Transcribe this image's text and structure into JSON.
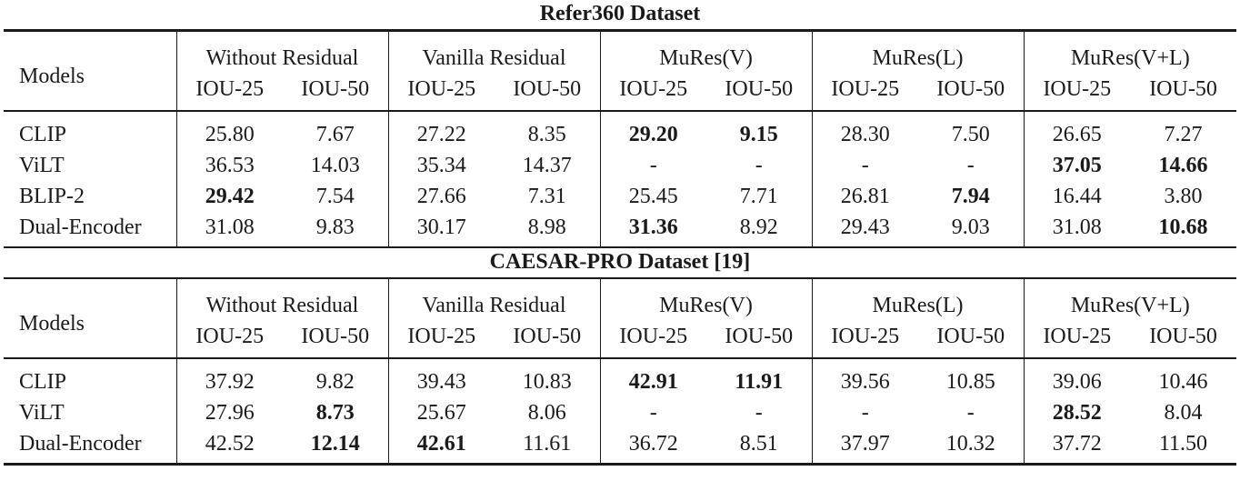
{
  "tables": [
    {
      "caption": "Refer360 Dataset",
      "models_header": "Models",
      "groups": [
        "Without Residual",
        "Vanilla Residual",
        "MuRes(V)",
        "MuRes(L)",
        "MuRes(V+L)"
      ],
      "metrics": [
        "IOU-25",
        "IOU-50"
      ],
      "rows": [
        {
          "model": "CLIP",
          "values": [
            "25.80",
            "7.67",
            "27.22",
            "8.35",
            "29.20",
            "9.15",
            "28.30",
            "7.50",
            "26.65",
            "7.27"
          ],
          "bold": [
            false,
            false,
            false,
            false,
            true,
            true,
            false,
            false,
            false,
            false
          ]
        },
        {
          "model": "ViLT",
          "values": [
            "36.53",
            "14.03",
            "35.34",
            "14.37",
            "-",
            "-",
            "-",
            "-",
            "37.05",
            "14.66"
          ],
          "bold": [
            false,
            false,
            false,
            false,
            false,
            false,
            false,
            false,
            true,
            true
          ]
        },
        {
          "model": "BLIP-2",
          "values": [
            "29.42",
            "7.54",
            "27.66",
            "7.31",
            "25.45",
            "7.71",
            "26.81",
            "7.94",
            "16.44",
            "3.80"
          ],
          "bold": [
            true,
            false,
            false,
            false,
            false,
            false,
            false,
            true,
            false,
            false
          ]
        },
        {
          "model": "Dual-Encoder",
          "values": [
            "31.08",
            "9.83",
            "30.17",
            "8.98",
            "31.36",
            "8.92",
            "29.43",
            "9.03",
            "31.08",
            "10.68"
          ],
          "bold": [
            false,
            false,
            false,
            false,
            true,
            false,
            false,
            false,
            false,
            true
          ]
        }
      ]
    },
    {
      "caption": "CAESAR-PRO Dataset [19]",
      "models_header": "Models",
      "groups": [
        "Without Residual",
        "Vanilla Residual",
        "MuRes(V)",
        "MuRes(L)",
        "MuRes(V+L)"
      ],
      "metrics": [
        "IOU-25",
        "IOU-50"
      ],
      "rows": [
        {
          "model": "CLIP",
          "values": [
            "37.92",
            "9.82",
            "39.43",
            "10.83",
            "42.91",
            "11.91",
            "39.56",
            "10.85",
            "39.06",
            "10.46"
          ],
          "bold": [
            false,
            false,
            false,
            false,
            true,
            true,
            false,
            false,
            false,
            false
          ]
        },
        {
          "model": "ViLT",
          "values": [
            "27.96",
            "8.73",
            "25.67",
            "8.06",
            "-",
            "-",
            "-",
            "-",
            "28.52",
            "8.04"
          ],
          "bold": [
            false,
            true,
            false,
            false,
            false,
            false,
            false,
            false,
            true,
            false
          ]
        },
        {
          "model": "Dual-Encoder",
          "values": [
            "42.52",
            "12.14",
            "42.61",
            "11.61",
            "36.72",
            "8.51",
            "37.97",
            "10.32",
            "37.72",
            "11.50"
          ],
          "bold": [
            false,
            true,
            true,
            false,
            false,
            false,
            false,
            false,
            false,
            false
          ]
        }
      ]
    }
  ]
}
